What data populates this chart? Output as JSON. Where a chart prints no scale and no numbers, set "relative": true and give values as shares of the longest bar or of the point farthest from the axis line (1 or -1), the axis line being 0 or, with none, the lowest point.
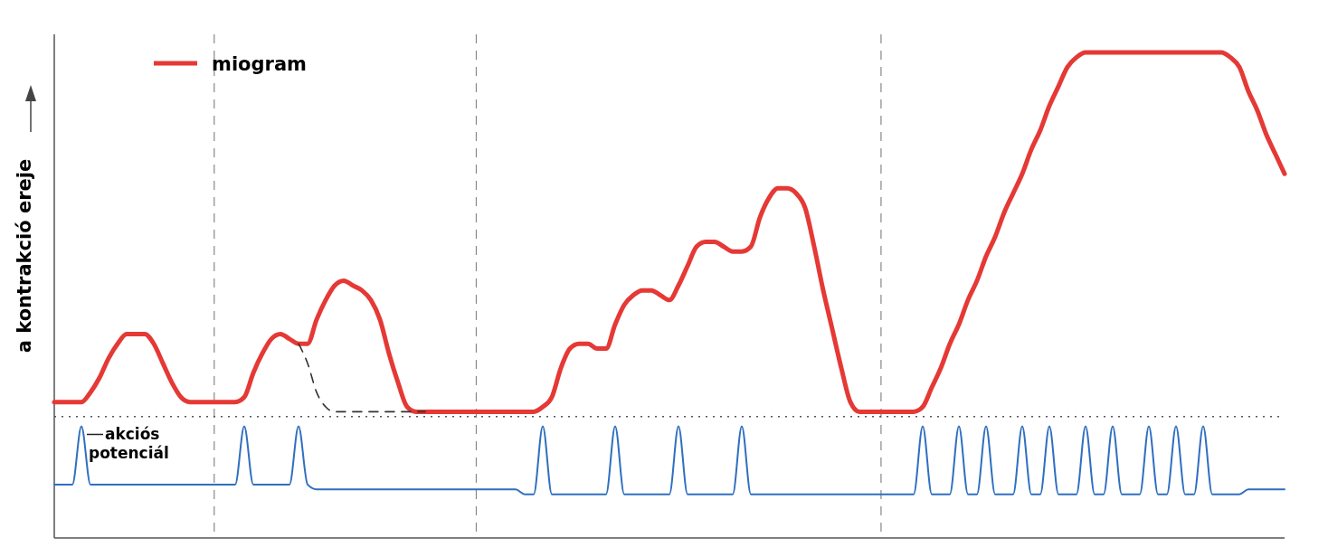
{
  "chart_data": {
    "type": "line",
    "relative": true,
    "ylabel": "a kontrakció ereje",
    "legend": "top left",
    "grid": false,
    "marker": "none",
    "line_style": "solid",
    "categories": [
      null,
      null,
      null,
      null,
      null,
      null,
      null,
      null,
      null,
      null,
      null,
      null,
      null,
      null,
      null,
      null,
      null,
      null,
      null,
      null,
      null,
      null,
      null,
      null,
      null,
      null,
      null,
      null,
      null,
      null,
      null,
      null,
      null,
      null,
      null,
      null,
      null,
      null,
      null,
      null,
      null,
      null,
      null,
      null,
      null,
      null,
      null,
      null,
      null,
      null,
      null,
      null,
      null,
      null,
      null,
      null,
      null,
      null,
      null,
      null,
      null,
      null,
      null,
      null,
      null,
      null,
      null,
      null,
      null,
      null,
      null,
      null,
      null,
      null,
      null,
      null,
      null,
      null,
      null,
      null,
      null,
      null,
      null,
      null,
      null,
      null,
      null,
      null,
      null,
      null,
      null,
      null,
      null,
      null,
      null,
      null,
      null,
      null,
      null,
      null,
      null,
      null,
      null,
      null,
      null,
      null,
      null,
      null,
      null,
      null,
      null,
      null,
      null,
      null,
      null,
      null,
      null,
      null,
      null,
      null,
      null,
      null,
      null,
      null,
      null,
      null,
      null,
      null,
      null,
      null,
      null,
      null,
      null,
      null,
      null,
      null,
      null
    ],
    "series": [
      {
        "name": "miogram",
        "color": "#e53935",
        "values": [
          0.28,
          0.28,
          0.28,
          0.28,
          0.3,
          0.33,
          0.37,
          0.4,
          0.42,
          0.42,
          0.42,
          0.4,
          0.36,
          0.32,
          0.29,
          0.28,
          0.28,
          0.28,
          0.28,
          0.28,
          0.28,
          0.29,
          0.34,
          0.38,
          0.41,
          0.42,
          0.41,
          0.4,
          0.4,
          0.45,
          0.49,
          0.52,
          0.53,
          0.52,
          0.51,
          0.49,
          0.45,
          0.38,
          0.32,
          0.27,
          0.26,
          0.26,
          0.26,
          0.26,
          0.26,
          0.26,
          0.26,
          0.26,
          0.26,
          0.26,
          0.26,
          0.26,
          0.26,
          0.26,
          0.27,
          0.29,
          0.35,
          0.39,
          0.4,
          0.4,
          0.39,
          0.39,
          0.44,
          0.48,
          0.5,
          0.51,
          0.51,
          0.5,
          0.49,
          0.52,
          0.56,
          0.6,
          0.61,
          0.61,
          0.6,
          0.59,
          0.59,
          0.6,
          0.66,
          0.7,
          0.72,
          0.72,
          0.71,
          0.68,
          0.6,
          0.51,
          0.43,
          0.35,
          0.28,
          0.26,
          0.26,
          0.26,
          0.26,
          0.26,
          0.26,
          0.26,
          0.27,
          0.31,
          0.35,
          0.4,
          0.44,
          0.49,
          0.53,
          0.58,
          0.62,
          0.67,
          0.71,
          0.75,
          0.8,
          0.84,
          0.89,
          0.93,
          0.97,
          0.99,
          1,
          1,
          1,
          1,
          1,
          1,
          1,
          1,
          1,
          1,
          1,
          1,
          1,
          1,
          1,
          1,
          0.99,
          0.97,
          0.92,
          0.88,
          0.83,
          0.79,
          0.75
        ]
      },
      {
        "name": "akciós potenciál",
        "color": "#2f6fc0",
        "values": [
          0.11,
          0.11,
          0.11,
          0.23,
          0.11,
          0.11,
          0.11,
          0.11,
          0.11,
          0.11,
          0.11,
          0.11,
          0.11,
          0.11,
          0.11,
          0.11,
          0.11,
          0.11,
          0.11,
          0.11,
          0.11,
          0.23,
          0.11,
          0.11,
          0.11,
          0.11,
          0.11,
          0.23,
          0.11,
          0.1,
          0.1,
          0.1,
          0.1,
          0.1,
          0.1,
          0.1,
          0.1,
          0.1,
          0.1,
          0.1,
          0.1,
          0.1,
          0.1,
          0.1,
          0.1,
          0.1,
          0.1,
          0.1,
          0.1,
          0.1,
          0.1,
          0.1,
          0.09,
          0.09,
          0.23,
          0.09,
          0.09,
          0.09,
          0.09,
          0.09,
          0.09,
          0.09,
          0.23,
          0.09,
          0.09,
          0.09,
          0.09,
          0.09,
          0.09,
          0.23,
          0.09,
          0.09,
          0.09,
          0.09,
          0.09,
          0.09,
          0.23,
          0.09,
          0.09,
          0.09,
          0.09,
          0.09,
          0.09,
          0.09,
          0.09,
          0.09,
          0.09,
          0.09,
          0.09,
          0.09,
          0.09,
          0.09,
          0.09,
          0.09,
          0.09,
          0.09,
          0.23,
          0.09,
          0.09,
          0.09,
          0.23,
          0.09,
          0.09,
          0.23,
          0.09,
          0.09,
          0.09,
          0.23,
          0.09,
          0.09,
          0.23,
          0.09,
          0.09,
          0.09,
          0.23,
          0.09,
          0.09,
          0.23,
          0.09,
          0.09,
          0.09,
          0.23,
          0.09,
          0.09,
          0.23,
          0.09,
          0.09,
          0.23,
          0.09,
          0.09,
          0.09,
          0.09,
          0.1,
          0.1,
          0.1,
          0.1,
          0.1
        ]
      },
      {
        "color": "#333333",
        "line_style": "dashed",
        "values": [
          null,
          null,
          null,
          null,
          null,
          null,
          null,
          null,
          null,
          null,
          null,
          null,
          null,
          null,
          null,
          null,
          null,
          null,
          null,
          null,
          null,
          null,
          null,
          null,
          null,
          null,
          null,
          0.4,
          0.36,
          0.3,
          0.27,
          0.26,
          0.26,
          0.26,
          0.26,
          0.26,
          0.26,
          0.26,
          0.26,
          0.26,
          0.26,
          0.26,
          null,
          null,
          null,
          null,
          null,
          null,
          null,
          null,
          null,
          null,
          null,
          null,
          null,
          null,
          null,
          null,
          null,
          null,
          null,
          null,
          null,
          null,
          null,
          null,
          null,
          null,
          null,
          null,
          null,
          null,
          null,
          null,
          null,
          null,
          null,
          null,
          null,
          null,
          null,
          null,
          null,
          null,
          null,
          null,
          null,
          null,
          null,
          null,
          null,
          null,
          null,
          null,
          null,
          null,
          null,
          null,
          null,
          null,
          null,
          null,
          null,
          null,
          null,
          null,
          null,
          null,
          null,
          null,
          null,
          null,
          null,
          null,
          null,
          null,
          null,
          null,
          null,
          null,
          null,
          null,
          null,
          null,
          null,
          null,
          null,
          null,
          null,
          null,
          null,
          null,
          null,
          null,
          null,
          null,
          null
        ]
      }
    ],
    "ref_lines": [
      {
        "axis": "y",
        "value": 0.25,
        "color": "#555555",
        "line_style": "dotted"
      }
    ]
  }
}
